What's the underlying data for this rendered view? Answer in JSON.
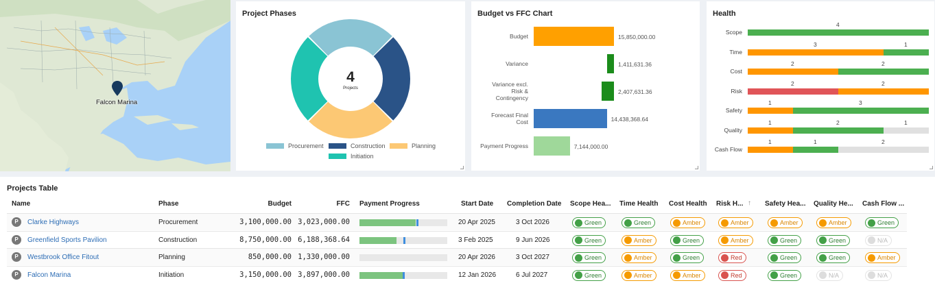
{
  "map": {
    "marker_label": "Falcon Marina"
  },
  "phases": {
    "title": "Project Phases",
    "center_value": "4",
    "center_label": "Projects",
    "chart_data": {
      "type": "pie",
      "categories": [
        "Procurement",
        "Construction",
        "Planning",
        "Initiation"
      ],
      "values": [
        1,
        1,
        1,
        1
      ],
      "colors": [
        "#8ac4d4",
        "#2a5387",
        "#fcc874",
        "#1fc3b0"
      ]
    }
  },
  "budget": {
    "title": "Budget vs FFC Chart",
    "chart_data": {
      "type": "bar",
      "categories": [
        "Budget",
        "Variance",
        "Variance excl. Risk & Contingency",
        "Forecast Final Cost",
        "Payment Progress"
      ],
      "display_labels": [
        "Budget",
        "Variance",
        "Variance excl.\nRisk &\nContingency",
        "Forecast Final\nCost",
        "Payment Progress"
      ],
      "values": [
        15850000,
        1411631.36,
        2407631.36,
        14438368.64,
        7144000
      ],
      "value_labels": [
        "15,850,000.00",
        "1,411,631.36",
        "2,407,631.36",
        "14,438,368.64",
        "7,144,000.00"
      ],
      "colors": [
        "#ffa000",
        "#1b8c1b",
        "#1b8c1b",
        "#3a78c0",
        "#9fd89a"
      ],
      "xlim": [
        0,
        18000000
      ]
    }
  },
  "health": {
    "title": "Health",
    "chart_data": {
      "type": "bar",
      "stacked": true,
      "categories": [
        "Scope",
        "Time",
        "Cost",
        "Risk",
        "Safety",
        "Quality",
        "Cash Flow"
      ],
      "series": [
        {
          "color": "#e05558",
          "values": [
            0,
            0,
            0,
            2,
            0,
            0,
            0
          ]
        },
        {
          "color": "#ff9600",
          "values": [
            0,
            3,
            2,
            2,
            1,
            1,
            1
          ]
        },
        {
          "color": "#4caf50",
          "values": [
            4,
            1,
            2,
            0,
            3,
            2,
            1
          ]
        },
        {
          "color": "#e0e0e0",
          "values": [
            0,
            0,
            0,
            0,
            0,
            1,
            2
          ]
        }
      ],
      "total": 4
    }
  },
  "table": {
    "title": "Projects Table",
    "columns": [
      "Name",
      "Phase",
      "Budget",
      "FFC",
      "Payment Progress",
      "Start Date",
      "Completion Date",
      "Scope Hea...",
      "Time Health",
      "Cost Health",
      "Risk H...",
      "Safety Hea...",
      "Quality He...",
      "Cash Flow ..."
    ],
    "sort_icon": "arrow-up-icon",
    "rows": [
      {
        "icon": "P",
        "name": "Clarke Highways",
        "phase": "Procurement",
        "budget": "3,100,000.00",
        "ffc": "3,023,000.00",
        "progress": 0.64,
        "mark": 0.65,
        "start": "20 Apr 2025",
        "completion": "3 Oct 2026",
        "health": [
          [
            "green",
            "Green"
          ],
          [
            "green",
            "Green"
          ],
          [
            "amber",
            "Amber"
          ],
          [
            "amber",
            "Amber"
          ],
          [
            "amber",
            "Amber"
          ],
          [
            "amber",
            "Amber"
          ],
          [
            "green",
            "Green"
          ]
        ]
      },
      {
        "icon": "P",
        "name": "Greenfield Sports Pavilion",
        "phase": "Construction",
        "budget": "8,750,000.00",
        "ffc": "6,188,368.64",
        "progress": 0.42,
        "mark": 0.5,
        "start": "3 Feb 2025",
        "completion": "9 Jun 2026",
        "health": [
          [
            "green",
            "Green"
          ],
          [
            "amber",
            "Amber"
          ],
          [
            "green",
            "Green"
          ],
          [
            "amber",
            "Amber"
          ],
          [
            "green",
            "Green"
          ],
          [
            "green",
            "Green"
          ],
          [
            "na",
            "N/A"
          ]
        ]
      },
      {
        "icon": "P",
        "name": "Westbrook Office Fitout",
        "phase": "Planning",
        "budget": "850,000.00",
        "ffc": "1,330,000.00",
        "progress": 0,
        "mark": null,
        "start": "20 Apr 2026",
        "completion": "3 Oct 2027",
        "health": [
          [
            "green",
            "Green"
          ],
          [
            "amber",
            "Amber"
          ],
          [
            "green",
            "Green"
          ],
          [
            "red",
            "Red"
          ],
          [
            "green",
            "Green"
          ],
          [
            "green",
            "Green"
          ],
          [
            "amber",
            "Amber"
          ]
        ]
      },
      {
        "icon": "P",
        "name": "Falcon Marina",
        "phase": "Initiation",
        "budget": "3,150,000.00",
        "ffc": "3,897,000.00",
        "progress": 0.49,
        "mark": 0.49,
        "start": "12 Jan 2026",
        "completion": "6 Jul 2027",
        "health": [
          [
            "green",
            "Green"
          ],
          [
            "amber",
            "Amber"
          ],
          [
            "amber",
            "Amber"
          ],
          [
            "red",
            "Red"
          ],
          [
            "green",
            "Green"
          ],
          [
            "na",
            "N/A"
          ],
          [
            "na",
            "N/A"
          ]
        ]
      }
    ]
  }
}
